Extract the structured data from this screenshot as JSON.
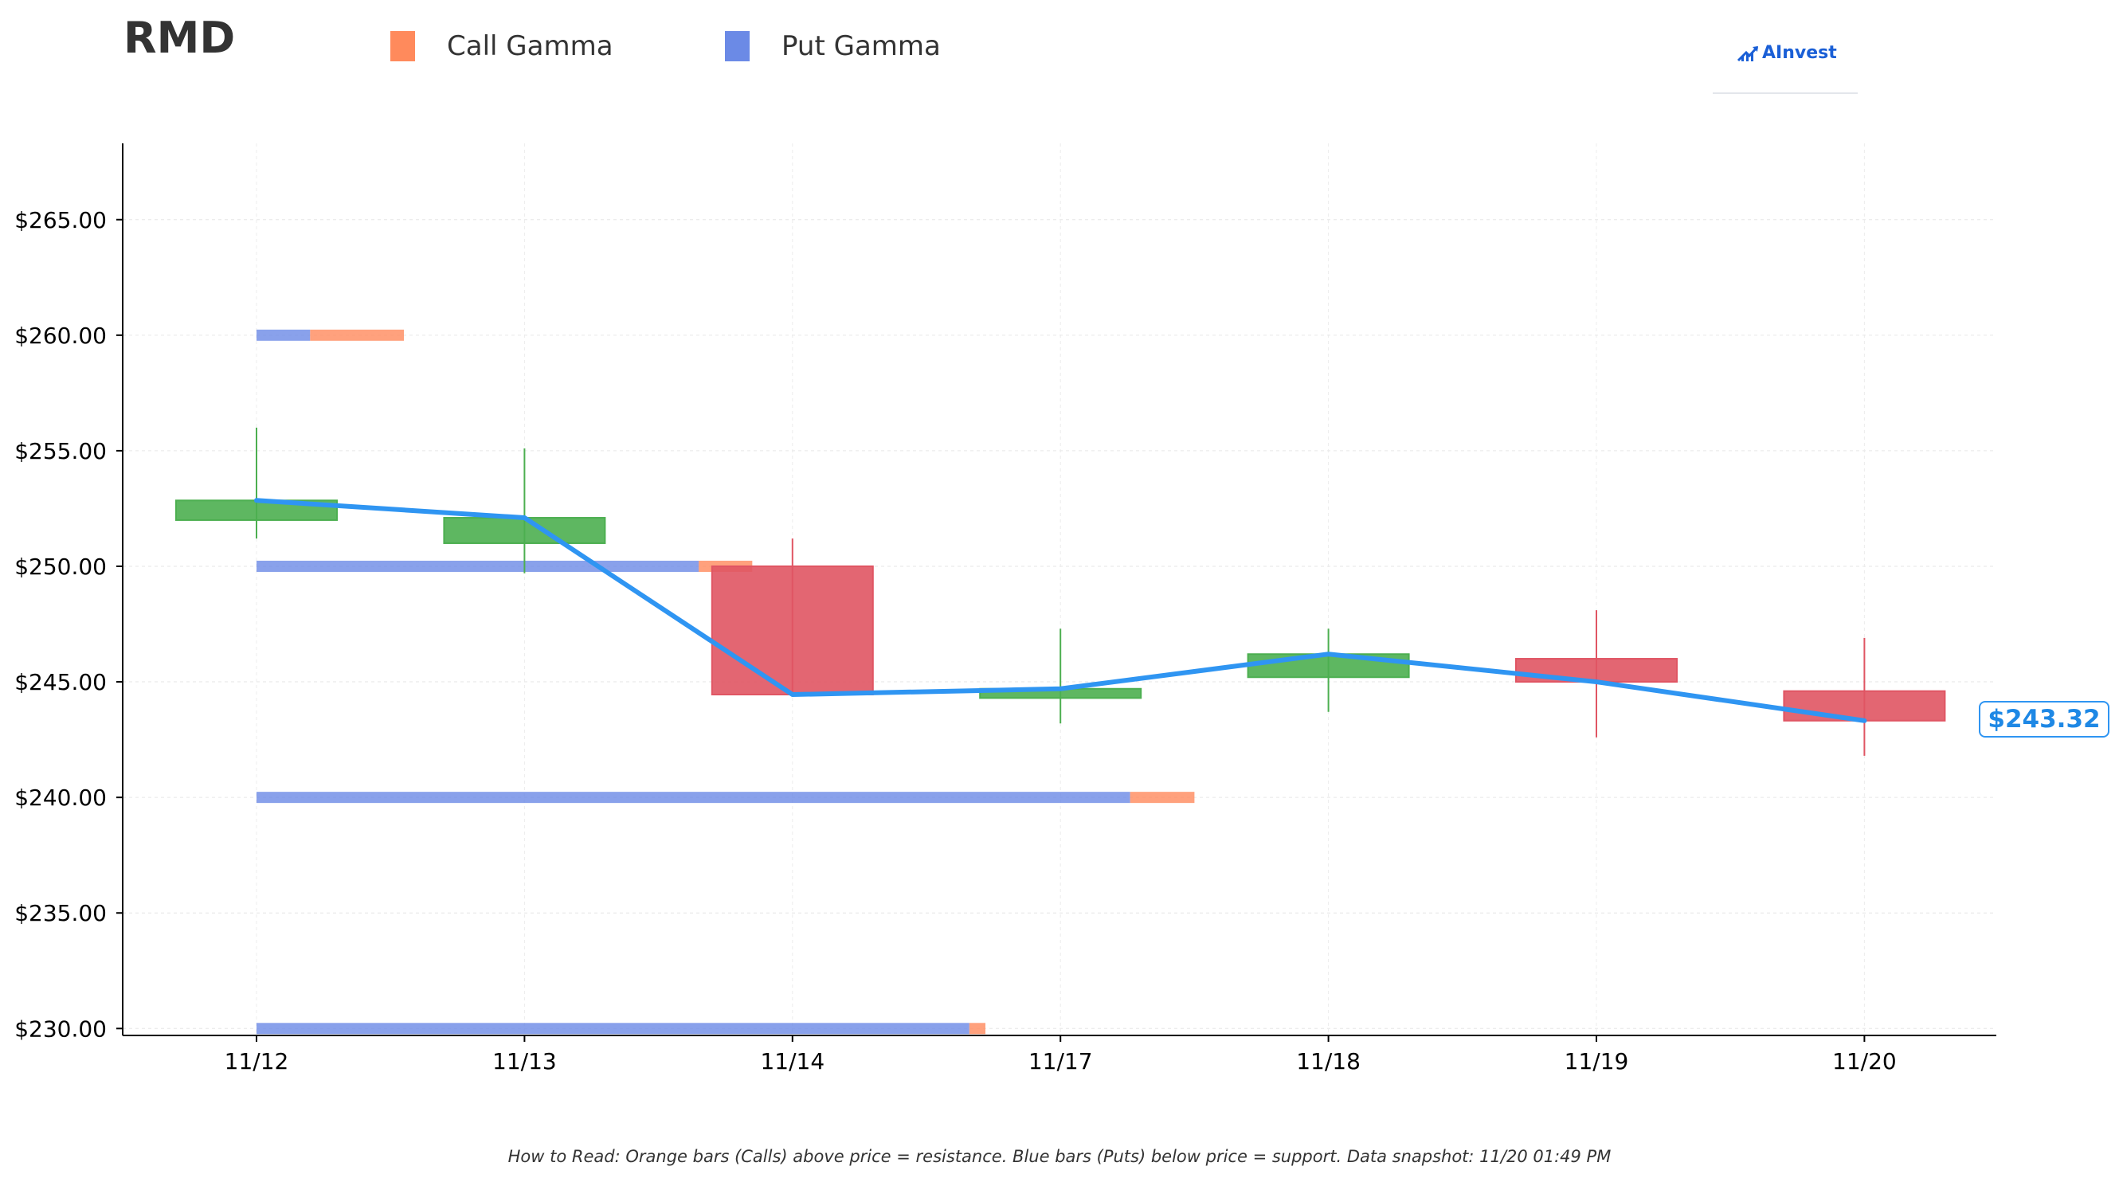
{
  "header": {
    "ticker": "RMD",
    "legend": [
      {
        "label": "Call Gamma",
        "color": "#ff8a5c"
      },
      {
        "label": "Put Gamma",
        "color": "#6b8ae6"
      }
    ],
    "brand": "AInvest",
    "brand_icon": "chart-arrow-icon"
  },
  "footer": {
    "note": "How to Read: Orange bars (Calls) above price = resistance. Blue bars (Puts) below price = support. Data snapshot: 11/20 01:49 PM"
  },
  "chart_data": {
    "type": "candlestick",
    "ticker": "RMD",
    "categories": [
      "11/12",
      "11/13",
      "11/14",
      "11/17",
      "11/18",
      "11/19",
      "11/20"
    ],
    "candles": [
      {
        "date": "11/12",
        "open": 252.0,
        "high": 256.0,
        "low": 251.2,
        "close": 252.85
      },
      {
        "date": "11/13",
        "open": 251.0,
        "high": 255.1,
        "low": 249.7,
        "close": 252.1
      },
      {
        "date": "11/14",
        "open": 250.0,
        "high": 251.2,
        "low": 244.4,
        "close": 244.45
      },
      {
        "date": "11/17",
        "open": 244.3,
        "high": 247.3,
        "low": 243.2,
        "close": 244.7
      },
      {
        "date": "11/18",
        "open": 245.2,
        "high": 247.3,
        "low": 243.7,
        "close": 246.2
      },
      {
        "date": "11/19",
        "open": 246.0,
        "high": 248.1,
        "low": 242.6,
        "close": 245.0
      },
      {
        "date": "11/20",
        "open": 244.6,
        "high": 246.9,
        "low": 241.8,
        "close": 243.32
      }
    ],
    "close_line": [
      252.85,
      252.1,
      244.45,
      244.7,
      246.2,
      245.0,
      243.32
    ],
    "gamma_bars": [
      {
        "strike": 260.0,
        "put_end": 0.2,
        "call_end": 0.55
      },
      {
        "strike": 250.0,
        "put_end": 1.65,
        "call_end": 1.85
      },
      {
        "strike": 240.0,
        "put_end": 3.26,
        "call_end": 3.5
      },
      {
        "strike": 230.0,
        "put_end": 2.66,
        "call_end": 2.72
      }
    ],
    "gamma_scale_note": "bar ends in category-index units from 11/12",
    "y_ticks": [
      "$230.00",
      "$235.00",
      "$240.00",
      "$245.00",
      "$250.00",
      "$255.00",
      "$260.00",
      "$265.00"
    ],
    "y_tick_values": [
      230,
      235,
      240,
      245,
      250,
      255,
      260,
      265
    ],
    "ylim": [
      229.7,
      268.3
    ],
    "last_price": 243.32,
    "last_price_label": "$243.32",
    "colors": {
      "up": "#4caf50",
      "down": "#e05563",
      "close_line": "#2f95f2",
      "call": "#ff8a5c",
      "put": "#6b8ae6"
    },
    "grid": true,
    "legend_position": "top"
  }
}
